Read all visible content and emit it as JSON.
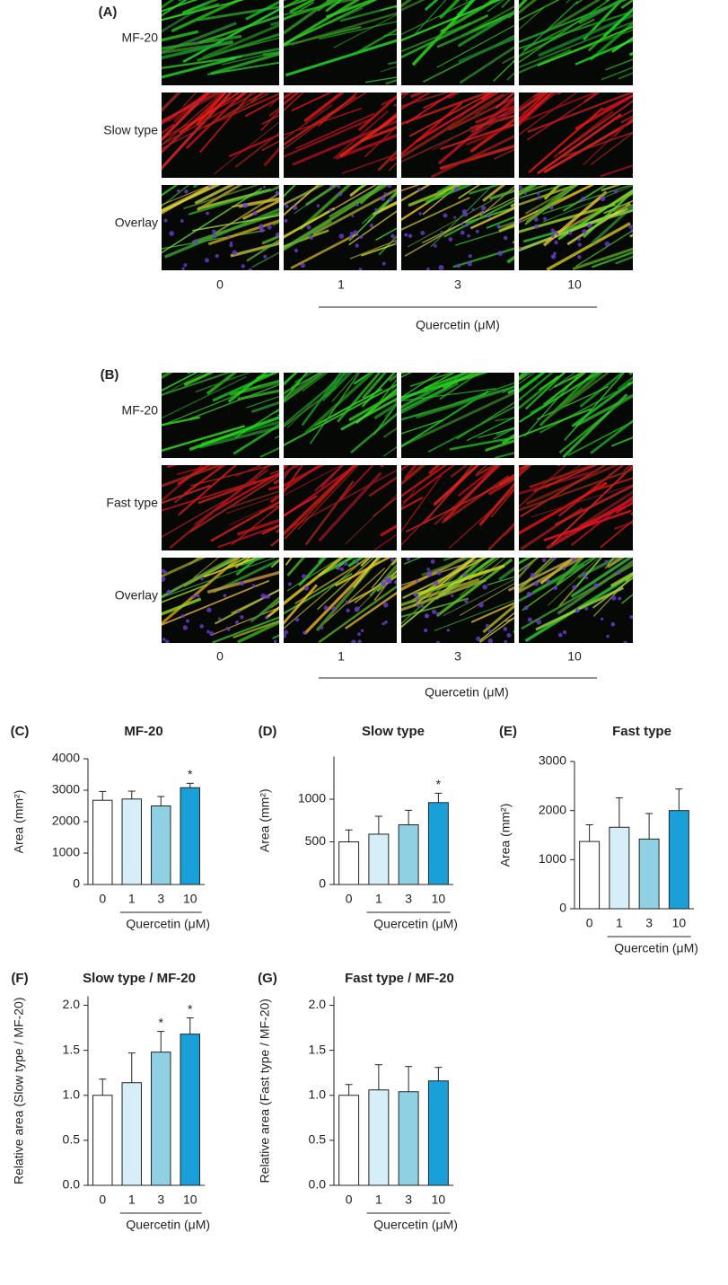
{
  "figure_a": {
    "label": "(A)",
    "rows": [
      "MF-20",
      "Slow type",
      "Overlay"
    ],
    "columns": [
      "0",
      "1",
      "3",
      "10"
    ],
    "axis_label": "Quercetin (μM)"
  },
  "figure_b": {
    "label": "(B)",
    "rows": [
      "MF-20",
      "Fast type",
      "Overlay"
    ],
    "columns": [
      "0",
      "1",
      "3",
      "10"
    ],
    "axis_label": "Quercetin (μM)"
  },
  "chart_data": [
    {
      "type": "bar",
      "label": "(C)",
      "title": "MF-20",
      "y_label": "Area (mm²)",
      "x_label": "Quercetin (μM)",
      "categories": [
        "0",
        "1",
        "3",
        "10"
      ],
      "values": [
        2680,
        2720,
        2500,
        3080
      ],
      "errors": [
        280,
        250,
        300,
        140
      ],
      "colors": [
        "#ffffff",
        "#d6eef7",
        "#8fd0e3",
        "#1aa0d8"
      ],
      "annotations": [
        {
          "x": "10",
          "text": "*"
        }
      ],
      "ylim": [
        0,
        4000
      ],
      "yticks": [
        0,
        1000,
        2000,
        3000,
        4000
      ]
    },
    {
      "type": "bar",
      "label": "(D)",
      "title": "Slow type",
      "y_label": "Area (mm²)",
      "x_label": "Quercetin (μM)",
      "categories": [
        "0",
        "1",
        "3",
        "10"
      ],
      "values": [
        500,
        590,
        700,
        960
      ],
      "errors": [
        140,
        210,
        170,
        110
      ],
      "colors": [
        "#ffffff",
        "#d6eef7",
        "#8fd0e3",
        "#1aa0d8"
      ],
      "annotations": [
        {
          "x": "10",
          "text": "*"
        }
      ],
      "ylim": [
        0,
        1500
      ],
      "yticks": [
        0,
        500,
        1000
      ]
    },
    {
      "type": "bar",
      "label": "(E)",
      "title": "Fast type",
      "y_label": "Area (mm²)",
      "x_label": "Quercetin (μM)",
      "categories": [
        "0",
        "1",
        "3",
        "10"
      ],
      "values": [
        1370,
        1660,
        1420,
        2000
      ],
      "errors": [
        340,
        600,
        520,
        440
      ],
      "colors": [
        "#ffffff",
        "#d6eef7",
        "#8fd0e3",
        "#1aa0d8"
      ],
      "ylim": [
        0,
        3000
      ],
      "yticks": [
        0,
        1000,
        2000,
        3000
      ]
    },
    {
      "type": "bar",
      "label": "(F)",
      "title": "Slow type / MF-20",
      "y_label": "Relative area (Slow type / MF-20)",
      "x_label": "Quercetin (μM)",
      "categories": [
        "0",
        "1",
        "3",
        "10"
      ],
      "values": [
        1.0,
        1.14,
        1.48,
        1.68
      ],
      "errors": [
        0.18,
        0.33,
        0.23,
        0.18
      ],
      "colors": [
        "#ffffff",
        "#d6eef7",
        "#8fd0e3",
        "#1aa0d8"
      ],
      "annotations": [
        {
          "x": "3",
          "text": "*"
        },
        {
          "x": "10",
          "text": "*"
        }
      ],
      "ylim": [
        0,
        2.1
      ],
      "yticks": [
        {
          "value": 0,
          "label": "0.0"
        },
        0.5,
        {
          "value": 1,
          "label": "1.0"
        },
        1.5,
        {
          "value": 2,
          "label": "2.0"
        }
      ]
    },
    {
      "type": "bar",
      "label": "(G)",
      "title": "Fast type / MF-20",
      "y_label": "Relative area (Fast type / MF-20)",
      "x_label": "Quercetin (μM)",
      "categories": [
        "0",
        "1",
        "3",
        "10"
      ],
      "values": [
        1.0,
        1.06,
        1.04,
        1.16
      ],
      "errors": [
        0.12,
        0.28,
        0.28,
        0.15
      ],
      "colors": [
        "#ffffff",
        "#d6eef7",
        "#8fd0e3",
        "#1aa0d8"
      ],
      "ylim": [
        0,
        2.1
      ],
      "yticks": [
        {
          "value": 0,
          "label": "0.0"
        },
        0.5,
        {
          "value": 1,
          "label": "1.0"
        },
        1.5,
        {
          "value": 2,
          "label": "2.0"
        }
      ]
    }
  ]
}
